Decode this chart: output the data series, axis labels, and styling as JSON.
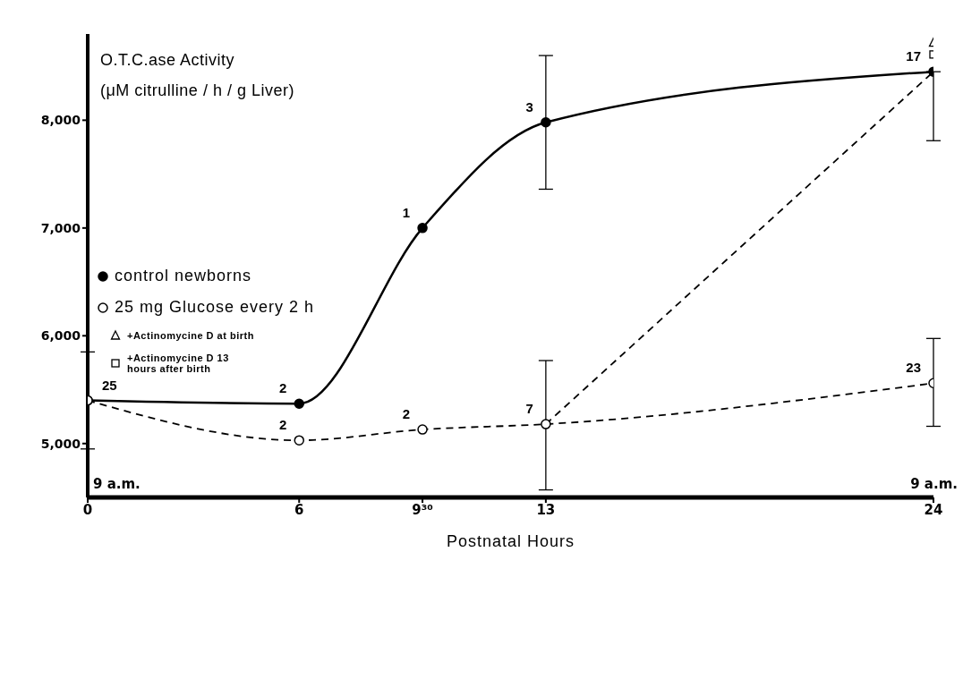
{
  "chart_data": {
    "type": "line",
    "ylabel": "O.T.C.ase Activity\n(μM citrulline / h / g Liver)",
    "xlabel": "Postnatal Hours",
    "xlim": [
      0,
      24
    ],
    "xticks": [
      0,
      6,
      {
        "value": 9.5,
        "label": "9³⁰"
      },
      13,
      24
    ],
    "ylim": [
      4500,
      8800
    ],
    "yticks": [
      {
        "value": 5000,
        "label": "5,000"
      },
      {
        "value": 6000,
        "label": "6,000"
      },
      {
        "value": 7000,
        "label": "7,000"
      },
      {
        "value": 8000,
        "label": "8,000"
      }
    ],
    "grid": false,
    "legend": "left",
    "series": [
      {
        "name": "control newborns",
        "color": "#000000",
        "line_style": "solid",
        "marker": "circle",
        "x": [
          0,
          6,
          9.5,
          13,
          24
        ],
        "values": [
          5400,
          5370,
          7000,
          7980,
          8450
        ],
        "errors": [
          450,
          null,
          null,
          620,
          [
            7810,
            8450
          ]
        ]
      },
      {
        "name": "25 mg Glucose every 2 h",
        "color": "#000000",
        "line_style": "dashed",
        "marker": "circle",
        "x": [
          0,
          6,
          9.5,
          13,
          24
        ],
        "values": [
          5400,
          5030,
          5130,
          5180,
          5560
        ],
        "errors": [
          null,
          null,
          null,
          [
            4570,
            5770
          ],
          [
            5160,
            5975
          ]
        ]
      },
      {
        "color": "#000000",
        "line_style": "dashed",
        "marker": "none",
        "x": [
          13,
          24
        ],
        "values": [
          5180,
          8450
        ]
      },
      {
        "name": "+Actinomycine D at birth",
        "color": "#000000",
        "type": "scatter",
        "marker": "triangle",
        "x": [
          24
        ],
        "values": [
          8720
        ]
      },
      {
        "name": "+Actinomycine D 13 hours after birth",
        "color": "#000000",
        "type": "scatter",
        "marker": "square",
        "x": [
          24
        ],
        "values": [
          8610
        ]
      }
    ],
    "annotations": [
      {
        "text": "25",
        "x": 0,
        "y": 5400
      },
      {
        "text": "2",
        "x": 6,
        "y": 5370
      },
      {
        "text": "1",
        "x": 9.5,
        "y": 7000
      },
      {
        "text": "3",
        "x": 13,
        "y": 7980
      },
      {
        "text": "17",
        "x": 24,
        "y": 8450
      },
      {
        "text": "2",
        "x": 6,
        "y": 5030
      },
      {
        "text": "2",
        "x": 9.5,
        "y": 5130
      },
      {
        "text": "7",
        "x": 13,
        "y": 5180
      },
      {
        "text": "23",
        "x": 24,
        "y": 5560
      },
      "9 a.m.",
      "9 a.m."
    ]
  }
}
